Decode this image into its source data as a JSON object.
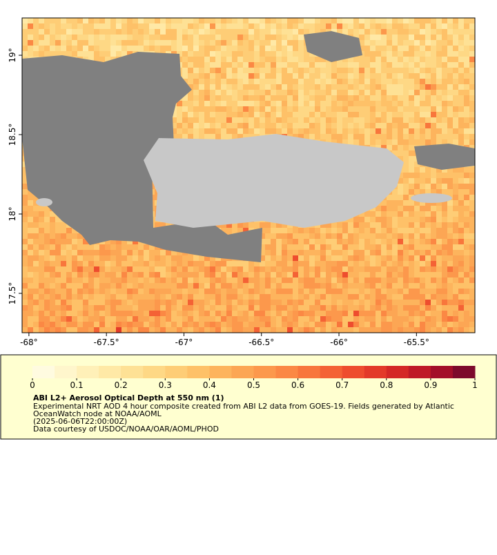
{
  "map": {
    "xlim": [
      -68.044,
      -65.123
    ],
    "ylim": [
      17.252,
      19.235
    ],
    "xticks": [
      {
        "value": -68,
        "label": "-68°"
      },
      {
        "value": -67.5,
        "label": "-67.5°"
      },
      {
        "value": -67,
        "label": "-67°"
      },
      {
        "value": -66.5,
        "label": "-66.5°"
      },
      {
        "value": -66,
        "label": "-66°"
      },
      {
        "value": -65.5,
        "label": "-65.5°"
      }
    ],
    "yticks": [
      {
        "value": 19,
        "label": "19°"
      },
      {
        "value": 18.5,
        "label": "18.5°"
      },
      {
        "value": 18,
        "label": "18°"
      },
      {
        "value": 17.5,
        "label": "17.5°"
      }
    ]
  },
  "colorbar": {
    "lim": [
      0,
      1
    ],
    "ticks": [
      0,
      0.1,
      0.2,
      0.3,
      0.4,
      0.5,
      0.6,
      0.7,
      0.8,
      0.9,
      1
    ],
    "colors": [
      "#fffbe0",
      "#fff6cc",
      "#fff0b8",
      "#ffe9a6",
      "#fee195",
      "#fed885",
      "#fecd76",
      "#fec168",
      "#fdb45d",
      "#fca654",
      "#fc984c",
      "#fb8844",
      "#f8763c",
      "#f46235",
      "#ee4d2e",
      "#e33a29",
      "#d42826",
      "#bf1a27",
      "#a30f29",
      "#7d0a2b"
    ]
  },
  "caption": {
    "title": "ABI L2+ Aerosol Optical Depth at 550 nm (1)",
    "lines": [
      "Experimental NRT AOD 4 hour composite created from ABI L2 data from GOES-19. Fields generated by Atlantic",
      "OceanWatch node at NOAA/AOML",
      "(2025-06-06T22:00:00Z)",
      "Data courtesy of USDOC/NOAA/OAR/AOML/PHOD"
    ]
  }
}
